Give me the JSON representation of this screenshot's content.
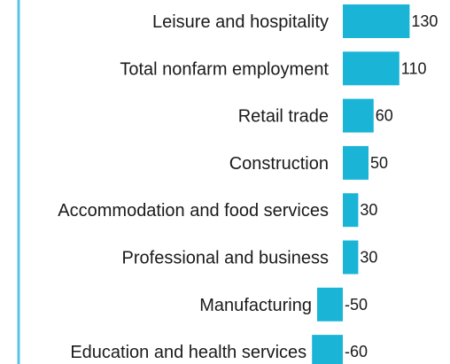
{
  "chart_data": {
    "type": "bar",
    "orientation": "horizontal",
    "categories": [
      "Leisure and hospitality",
      "Total nonfarm employment",
      "Retail trade",
      "Construction",
      "Accommodation and food services",
      "Professional and business",
      "Manufacturing",
      "Education and health services"
    ],
    "values": [
      130,
      110,
      60,
      50,
      30,
      30,
      -50,
      -60
    ],
    "value_labels": [
      "130",
      "110",
      "60",
      "50",
      "30",
      "30",
      "-50",
      "-60"
    ],
    "bar_color": "#1ab5d6",
    "frame_color": "#5bc3e6",
    "grid": false
  }
}
